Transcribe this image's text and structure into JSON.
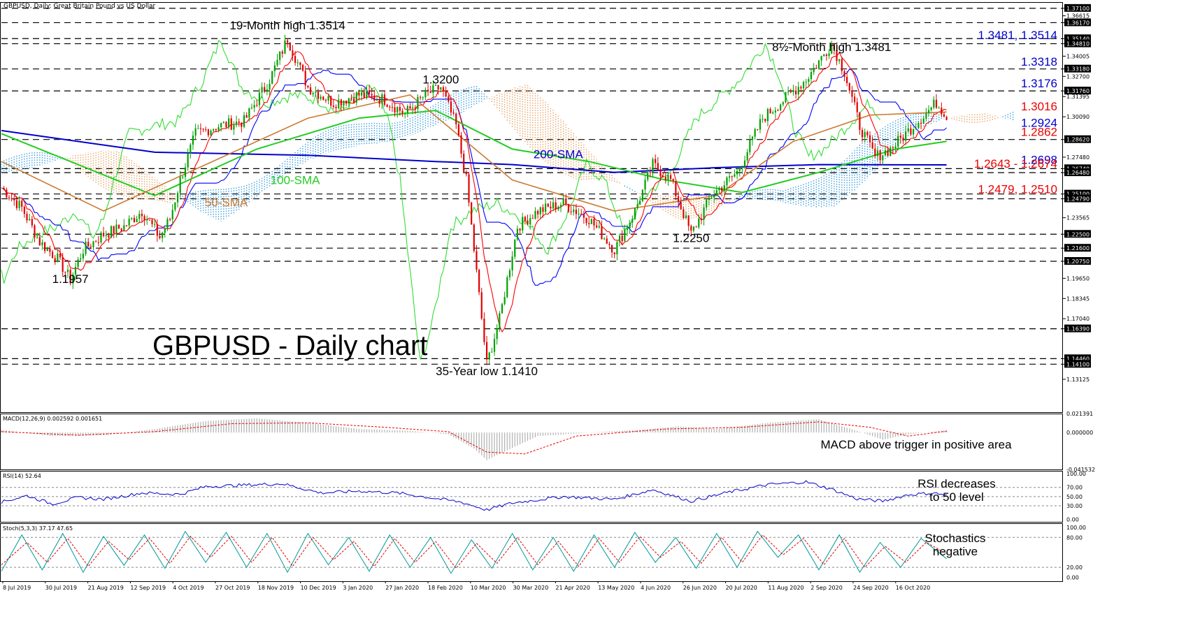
{
  "header": {
    "symbol_info": "GBPUSD, Daily:  Great Britain Pound vs US Dollar",
    "watermark": "GBPUSD - Daily chart"
  },
  "chart_data": [
    {
      "panel": "price",
      "type": "candlestick",
      "ylim": [
        1.11,
        1.375
      ],
      "y_axis_ticks": [
        "1.37100",
        "1.36615",
        "1.36170",
        "1.35140",
        "1.34810",
        "1.34005",
        "1.33180",
        "1.32700",
        "1.31760",
        "1.31395",
        "1.30090",
        "1.28620",
        "1.27480",
        "1.26740",
        "1.26480",
        "1.25100",
        "1.24790",
        "1.23565",
        "1.22500",
        "1.21600",
        "1.20750",
        "1.19650",
        "1.18345",
        "1.17040",
        "1.16390",
        "1.14460",
        "1.14100",
        "1.13125"
      ],
      "horizontal_levels": [
        1.371,
        1.3617,
        1.3514,
        1.3481,
        1.3318,
        1.3176,
        1.2862,
        1.2674,
        1.2648,
        1.251,
        1.2479,
        1.225,
        1.216,
        1.2075,
        1.1639,
        1.1446,
        1.141
      ],
      "price_path": [
        [
          0,
          1.255
        ],
        [
          8,
          1.242
        ],
        [
          15,
          1.22
        ],
        [
          22,
          1.209
        ],
        [
          27,
          1.1957
        ],
        [
          32,
          1.215
        ],
        [
          40,
          1.225
        ],
        [
          48,
          1.23
        ],
        [
          55,
          1.24
        ],
        [
          62,
          1.223
        ],
        [
          66,
          1.235
        ],
        [
          70,
          1.26
        ],
        [
          76,
          1.29
        ],
        [
          85,
          1.295
        ],
        [
          95,
          1.298
        ],
        [
          105,
          1.325
        ],
        [
          112,
          1.3514
        ],
        [
          120,
          1.32
        ],
        [
          130,
          1.31
        ],
        [
          140,
          1.315
        ],
        [
          150,
          1.312
        ],
        [
          158,
          1.303
        ],
        [
          166,
          1.315
        ],
        [
          172,
          1.32
        ],
        [
          178,
          1.295
        ],
        [
          182,
          1.26
        ],
        [
          186,
          1.2
        ],
        [
          190,
          1.141
        ],
        [
          195,
          1.17
        ],
        [
          202,
          1.23
        ],
        [
          210,
          1.24
        ],
        [
          220,
          1.245
        ],
        [
          230,
          1.235
        ],
        [
          240,
          1.215
        ],
        [
          248,
          1.24
        ],
        [
          255,
          1.27
        ],
        [
          262,
          1.26
        ],
        [
          270,
          1.225
        ],
        [
          278,
          1.25
        ],
        [
          288,
          1.265
        ],
        [
          298,
          1.3
        ],
        [
          305,
          1.31
        ],
        [
          315,
          1.325
        ],
        [
          325,
          1.3481
        ],
        [
          330,
          1.33
        ],
        [
          336,
          1.295
        ],
        [
          342,
          1.275
        ],
        [
          348,
          1.28
        ],
        [
          354,
          1.29
        ],
        [
          360,
          1.3
        ],
        [
          366,
          1.31
        ],
        [
          370,
          1.3016
        ]
      ],
      "sma_50": [
        [
          0,
          1.272
        ],
        [
          40,
          1.24
        ],
        [
          80,
          1.27
        ],
        [
          120,
          1.3
        ],
        [
          160,
          1.315
        ],
        [
          200,
          1.26
        ],
        [
          240,
          1.24
        ],
        [
          280,
          1.25
        ],
        [
          310,
          1.285
        ],
        [
          340,
          1.302
        ],
        [
          370,
          1.304
        ]
      ],
      "sma_100": [
        [
          0,
          1.29
        ],
        [
          60,
          1.25
        ],
        [
          100,
          1.28
        ],
        [
          140,
          1.3
        ],
        [
          170,
          1.305
        ],
        [
          200,
          1.28
        ],
        [
          230,
          1.272
        ],
        [
          260,
          1.26
        ],
        [
          290,
          1.252
        ],
        [
          320,
          1.265
        ],
        [
          350,
          1.28
        ],
        [
          370,
          1.285
        ]
      ],
      "sma_200": [
        [
          0,
          1.292
        ],
        [
          60,
          1.278
        ],
        [
          120,
          1.276
        ],
        [
          170,
          1.272
        ],
        [
          200,
          1.27
        ],
        [
          240,
          1.265
        ],
        [
          280,
          1.268
        ],
        [
          320,
          1.27
        ],
        [
          370,
          1.2698
        ]
      ],
      "annotations": [
        {
          "text": "19-Month high 1.3514",
          "x": 112,
          "y": 1.3575,
          "color": "#000000"
        },
        {
          "text": "1.3200",
          "x": 172,
          "y": 1.3225,
          "color": "#000000"
        },
        {
          "text": "8½-Month high 1.3481",
          "x": 325,
          "y": 1.3435,
          "color": "#000000"
        },
        {
          "text": "1.1957",
          "x": 27,
          "y": 1.1935,
          "color": "#000000"
        },
        {
          "text": "1.2250",
          "x": 270,
          "y": 1.22,
          "color": "#000000"
        },
        {
          "text": "35-Year low 1.1410",
          "x": 190,
          "y": 1.134,
          "color": "#000000"
        },
        {
          "text": "200-SMA",
          "x": 218,
          "y": 1.274,
          "color": "#0000cc"
        },
        {
          "text": "100-SMA",
          "x": 115,
          "y": 1.2575,
          "color": "#22cc22"
        },
        {
          "text": "50-SMA",
          "x": 88,
          "y": 1.243,
          "color": "#cc7a30"
        }
      ],
      "right_labels": [
        {
          "text": "1.3481, 1.3514",
          "y": 1.351,
          "color": "#0000cc"
        },
        {
          "text": "1.3318",
          "y": 1.334,
          "color": "#0000cc"
        },
        {
          "text": "1.3176",
          "y": 1.32,
          "color": "#0000cc"
        },
        {
          "text": "1.3016",
          "y": 1.305,
          "color": "#ee0000"
        },
        {
          "text": "1.2924",
          "y": 1.2945,
          "color": "#0000cc"
        },
        {
          "text": "1.2862",
          "y": 1.2885,
          "color": "#ee0000"
        },
        {
          "text": "1.2698",
          "y": 1.2705,
          "color": "#0000cc"
        },
        {
          "text": "1.2643 - 1.2674",
          "y": 1.268,
          "color": "#ee0000"
        },
        {
          "text": "1.2479, 1.2510",
          "y": 1.2515,
          "color": "#ee0000"
        }
      ],
      "legend_series": [
        "200-SMA",
        "100-SMA",
        "50-SMA"
      ]
    },
    {
      "panel": "macd",
      "type": "bar",
      "indicator_label": "MACD(12,26,9) 0.002592 0.001651",
      "ylim": [
        -0.041532,
        0.021391
      ],
      "y_axis_ticks": [
        "0.021391",
        "0.000000",
        "-0.041532"
      ],
      "histogram": [
        [
          0,
          0.003
        ],
        [
          20,
          -0.004
        ],
        [
          40,
          -0.003
        ],
        [
          60,
          0.004
        ],
        [
          80,
          0.013
        ],
        [
          100,
          0.016
        ],
        [
          120,
          0.011
        ],
        [
          140,
          0.004
        ],
        [
          160,
          0.002
        ],
        [
          175,
          -0.002
        ],
        [
          185,
          -0.018
        ],
        [
          190,
          -0.031
        ],
        [
          198,
          -0.02
        ],
        [
          210,
          -0.004
        ],
        [
          230,
          0.0
        ],
        [
          250,
          0.003
        ],
        [
          265,
          0.007
        ],
        [
          280,
          0.004
        ],
        [
          300,
          0.011
        ],
        [
          320,
          0.015
        ],
        [
          335,
          0.002
        ],
        [
          345,
          -0.008
        ],
        [
          355,
          -0.002
        ],
        [
          370,
          0.0026
        ]
      ],
      "signal": [
        [
          0,
          0.001
        ],
        [
          30,
          -0.003
        ],
        [
          60,
          0.001
        ],
        [
          90,
          0.01
        ],
        [
          120,
          0.011
        ],
        [
          150,
          0.006
        ],
        [
          175,
          0.001
        ],
        [
          190,
          -0.022
        ],
        [
          205,
          -0.024
        ],
        [
          225,
          -0.004
        ],
        [
          260,
          0.004
        ],
        [
          290,
          0.006
        ],
        [
          320,
          0.012
        ],
        [
          340,
          0.006
        ],
        [
          355,
          -0.004
        ],
        [
          370,
          0.00165
        ]
      ],
      "caption": "MACD above trigger in positive area"
    },
    {
      "panel": "rsi",
      "type": "line",
      "indicator_label": "RSI(14) 52.64",
      "ylim": [
        0,
        100
      ],
      "y_axis_ticks": [
        "100.00",
        "70.00",
        "50.00",
        "30.00",
        "0.00"
      ],
      "values": [
        [
          0,
          38
        ],
        [
          10,
          52
        ],
        [
          20,
          34
        ],
        [
          30,
          48
        ],
        [
          40,
          44
        ],
        [
          55,
          58
        ],
        [
          70,
          55
        ],
        [
          80,
          72
        ],
        [
          100,
          76
        ],
        [
          110,
          78
        ],
        [
          125,
          58
        ],
        [
          140,
          62
        ],
        [
          155,
          58
        ],
        [
          170,
          46
        ],
        [
          180,
          38
        ],
        [
          190,
          21
        ],
        [
          200,
          36
        ],
        [
          220,
          50
        ],
        [
          240,
          44
        ],
        [
          255,
          65
        ],
        [
          270,
          40
        ],
        [
          285,
          60
        ],
        [
          300,
          76
        ],
        [
          315,
          82
        ],
        [
          325,
          66
        ],
        [
          335,
          45
        ],
        [
          345,
          40
        ],
        [
          355,
          54
        ],
        [
          365,
          58
        ],
        [
          370,
          52.6
        ]
      ],
      "caption_lines": [
        "RSI decreases",
        "to 50 level"
      ]
    },
    {
      "panel": "stochastic",
      "type": "line",
      "indicator_label": "Stoch(5,3,3) 37.17 47.65",
      "ylim": [
        0,
        100
      ],
      "y_axis_ticks": [
        "100.00",
        "80.00",
        "20.00",
        "0.00"
      ],
      "k_values": [
        [
          0,
          12
        ],
        [
          8,
          85
        ],
        [
          16,
          15
        ],
        [
          24,
          88
        ],
        [
          32,
          10
        ],
        [
          40,
          82
        ],
        [
          48,
          24
        ],
        [
          56,
          85
        ],
        [
          64,
          18
        ],
        [
          72,
          92
        ],
        [
          80,
          30
        ],
        [
          88,
          90
        ],
        [
          96,
          20
        ],
        [
          104,
          88
        ],
        [
          112,
          10
        ],
        [
          120,
          88
        ],
        [
          128,
          25
        ],
        [
          136,
          80
        ],
        [
          144,
          12
        ],
        [
          152,
          85
        ],
        [
          160,
          20
        ],
        [
          168,
          80
        ],
        [
          176,
          8
        ],
        [
          184,
          75
        ],
        [
          192,
          18
        ],
        [
          200,
          88
        ],
        [
          208,
          15
        ],
        [
          216,
          80
        ],
        [
          224,
          12
        ],
        [
          232,
          85
        ],
        [
          240,
          20
        ],
        [
          248,
          90
        ],
        [
          256,
          30
        ],
        [
          264,
          80
        ],
        [
          272,
          18
        ],
        [
          280,
          88
        ],
        [
          288,
          20
        ],
        [
          296,
          92
        ],
        [
          304,
          40
        ],
        [
          312,
          85
        ],
        [
          320,
          15
        ],
        [
          328,
          85
        ],
        [
          336,
          10
        ],
        [
          344,
          70
        ],
        [
          352,
          20
        ],
        [
          360,
          78
        ],
        [
          370,
          37.17
        ]
      ],
      "d_values": [
        [
          0,
          25
        ],
        [
          10,
          70
        ],
        [
          18,
          30
        ],
        [
          26,
          78
        ],
        [
          34,
          22
        ],
        [
          42,
          72
        ],
        [
          50,
          35
        ],
        [
          58,
          78
        ],
        [
          66,
          28
        ],
        [
          74,
          82
        ],
        [
          82,
          40
        ],
        [
          90,
          82
        ],
        [
          98,
          30
        ],
        [
          106,
          80
        ],
        [
          114,
          22
        ],
        [
          122,
          80
        ],
        [
          130,
          35
        ],
        [
          138,
          72
        ],
        [
          146,
          22
        ],
        [
          154,
          78
        ],
        [
          162,
          30
        ],
        [
          170,
          72
        ],
        [
          178,
          18
        ],
        [
          186,
          68
        ],
        [
          194,
          28
        ],
        [
          202,
          80
        ],
        [
          210,
          25
        ],
        [
          218,
          72
        ],
        [
          226,
          22
        ],
        [
          234,
          78
        ],
        [
          242,
          30
        ],
        [
          250,
          82
        ],
        [
          258,
          40
        ],
        [
          266,
          72
        ],
        [
          274,
          28
        ],
        [
          282,
          80
        ],
        [
          290,
          30
        ],
        [
          298,
          85
        ],
        [
          306,
          45
        ],
        [
          314,
          78
        ],
        [
          322,
          25
        ],
        [
          330,
          78
        ],
        [
          338,
          20
        ],
        [
          346,
          62
        ],
        [
          354,
          30
        ],
        [
          362,
          70
        ],
        [
          370,
          47.65
        ]
      ],
      "caption_lines": [
        "Stochastics",
        "negative"
      ]
    }
  ],
  "x_axis": {
    "labels": [
      "8 Jul 2019",
      "30 Jul 2019",
      "21 Aug 2019",
      "12 Sep 2019",
      "4 Oct 2019",
      "27 Oct 2019",
      "18 Nov 2019",
      "10 Dec 2019",
      "3 Jan 2020",
      "27 Jan 2020",
      "18 Feb 2020",
      "10 Mar 2020",
      "30 Mar 2020",
      "21 Apr 2020",
      "13 May 2020",
      "4 Jun 2020",
      "26 Jun 2020",
      "20 Jul 2020",
      "11 Aug 2020",
      "2 Sep 2020",
      "24 Sep 2020",
      "16 Oct 2020"
    ]
  },
  "colors": {
    "bull_candle": "#00a000",
    "bear_candle": "#e00000",
    "sma50": "#cc7a30",
    "sma100": "#22cc22",
    "sma200": "#0000cc",
    "kijun": "#0000ff",
    "tenkan": "#ff0000",
    "chikou": "#33dd33",
    "cloud_bull": "#3399dd",
    "cloud_bear": "#e8a060",
    "grid": "#000000",
    "rsi": "#0000cc",
    "stoch_k": "#009999",
    "stoch_d": "#e00000",
    "macd_hist": "#b0b0b0",
    "macd_signal": "#ee0000"
  }
}
